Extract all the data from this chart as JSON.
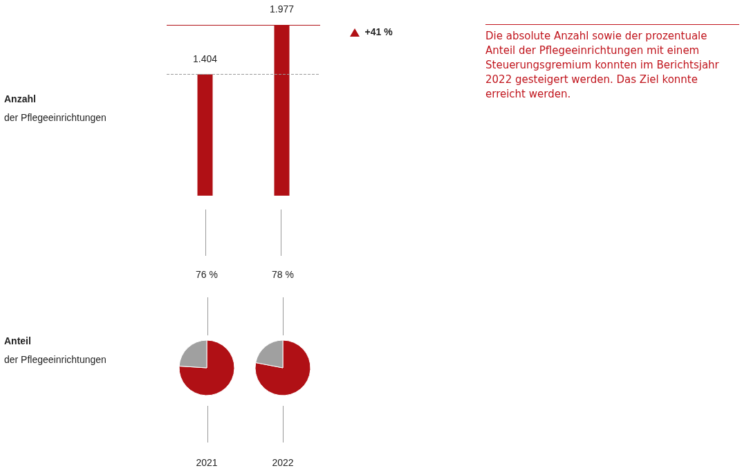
{
  "chart_data": [
    {
      "type": "bar",
      "ylabel": "Anzahl der Pflegeeinrichtungen",
      "categories": [
        null,
        null
      ],
      "values": [
        1404,
        1977
      ],
      "color": "#b01015",
      "value_labels": [
        "1.404",
        "1.977"
      ],
      "ref_lines": [
        {
          "axis": "y",
          "value": 1404,
          "color": "#999999",
          "line_style": "dashed"
        },
        {
          "axis": "y",
          "value": 1977,
          "color": "#b01015",
          "line_style": "solid"
        }
      ],
      "annotations": [
        "+41 %"
      ]
    },
    {
      "type": "pie",
      "title": "76 %",
      "ylabel": "Anteil der Pflegeeinrichtungen",
      "xlabel": "2021",
      "categories": [
        null,
        null
      ],
      "values": [
        76,
        24
      ],
      "colors": [
        "#b01015",
        "#a0a0a0"
      ]
    },
    {
      "type": "pie",
      "title": "78 %",
      "xlabel": "2022",
      "categories": [
        null,
        null
      ],
      "values": [
        78,
        22
      ],
      "colors": [
        "#b01015",
        "#a0a0a0"
      ]
    },
    {
      "type": "other",
      "annotations": [
        "Die absolute Anzahl sowie der prozentuale Anteil der Pflegeeinrichtungen mit einem Steuerungsgremium konnten im Berichtsjahr 2022 gesteigert werden. Das Ziel konnte erreicht werden."
      ]
    }
  ]
}
